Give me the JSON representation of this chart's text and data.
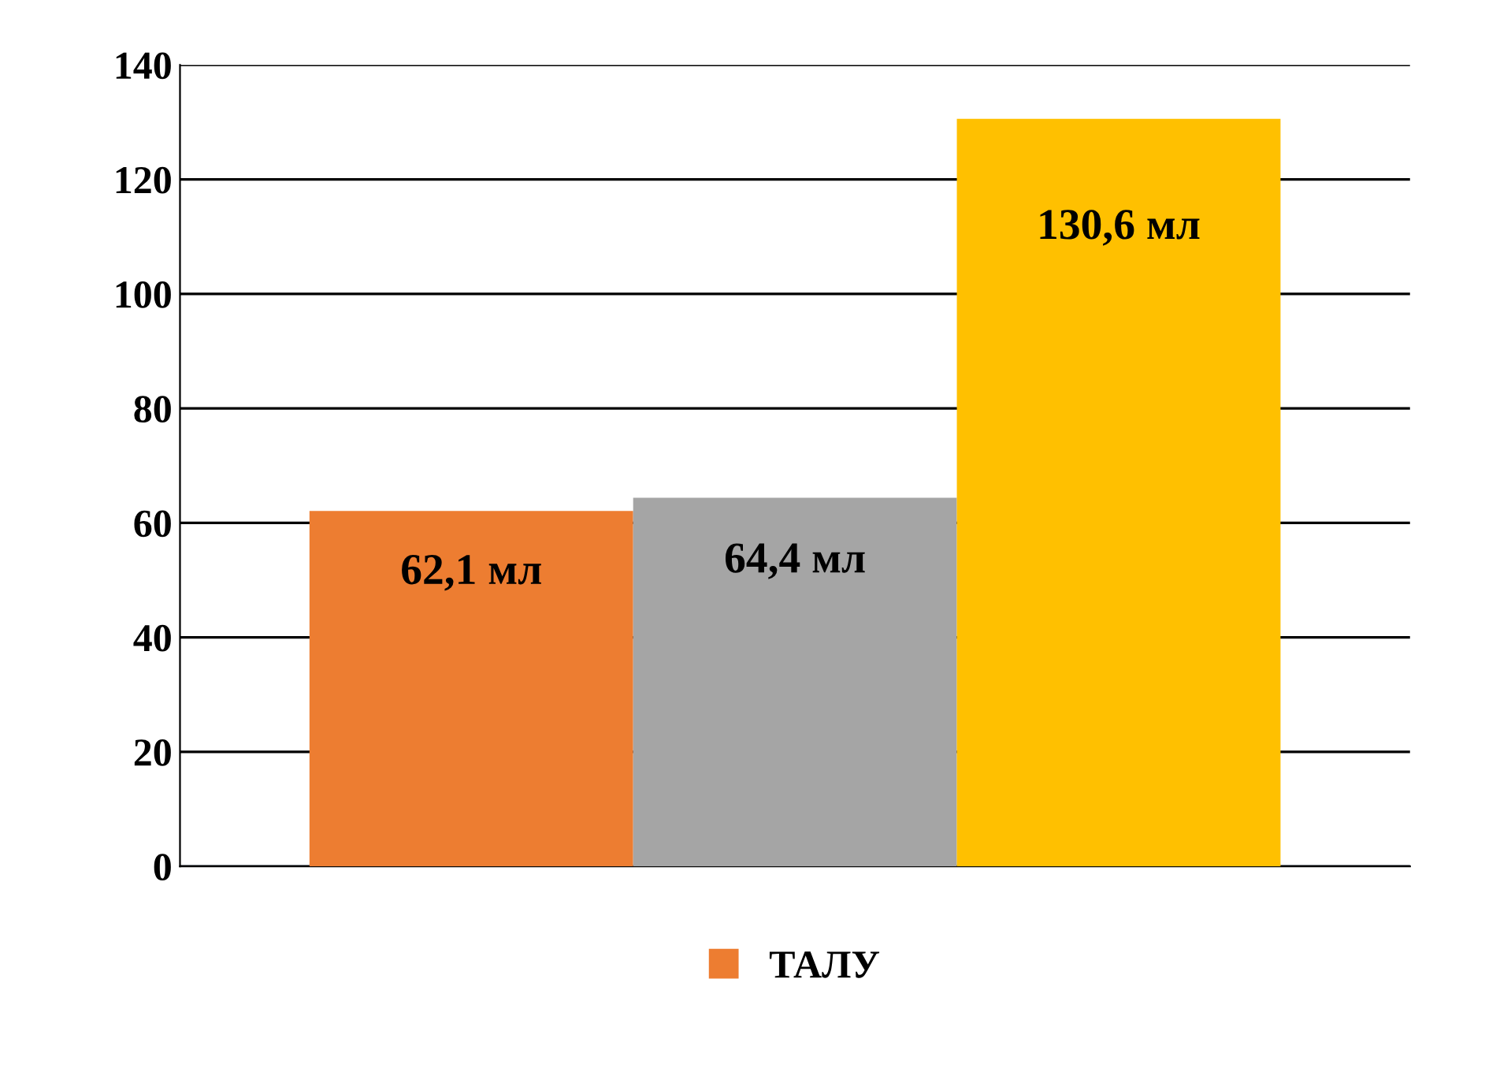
{
  "chart_data": {
    "type": "bar",
    "categories": [
      null,
      null,
      null
    ],
    "series": [
      {
        "name": "ТАЛУ",
        "color": "#ed7d31",
        "colors": [
          "#ed7d31",
          "#a5a5a5",
          "#ffc000"
        ],
        "values": [
          62.1,
          64.4,
          130.6
        ],
        "value_labels": [
          "62,1 мл",
          "64,4 мл",
          "130,6 мл"
        ]
      }
    ],
    "ylim": [
      0,
      140
    ],
    "yticks": [
      0,
      20,
      40,
      60,
      80,
      100,
      120,
      140
    ],
    "grid": "y",
    "legend": "bottom"
  }
}
